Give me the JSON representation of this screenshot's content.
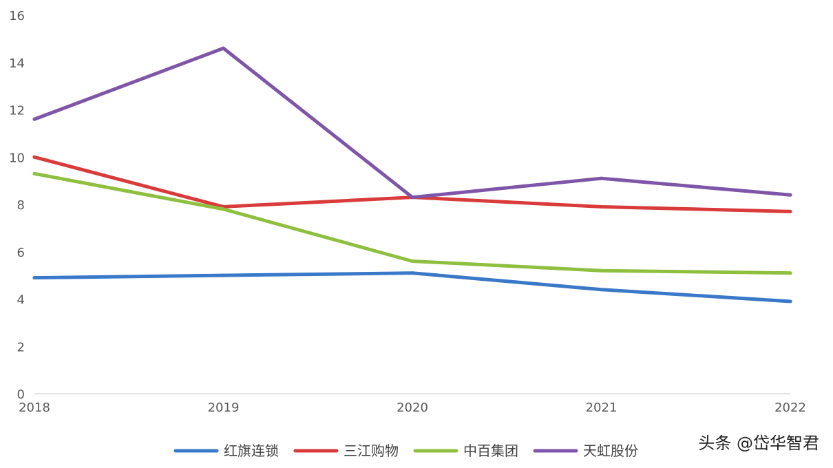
{
  "chart_data": {
    "type": "line",
    "title": "",
    "xlabel": "",
    "ylabel": "",
    "x": [
      "2018",
      "2019",
      "2020",
      "2021",
      "2022"
    ],
    "ylim": [
      0,
      16
    ],
    "yticks": [
      "0",
      "2",
      "4",
      "6",
      "8",
      "10",
      "12",
      "14",
      "16"
    ],
    "grid": false,
    "legend_position": "bottom",
    "series": [
      {
        "name": "红旗连锁",
        "color": "#3a78c9",
        "values": [
          4.9,
          5.0,
          5.1,
          4.4,
          3.9
        ]
      },
      {
        "name": "三江购物",
        "color": "#d93a3a",
        "values": [
          10.0,
          7.9,
          8.3,
          7.9,
          7.7
        ]
      },
      {
        "name": "中百集团",
        "color": "#8fbf3f",
        "values": [
          9.3,
          7.8,
          5.6,
          5.2,
          5.1
        ]
      },
      {
        "name": "天虹股份",
        "color": "#7e55a8",
        "values": [
          11.6,
          14.6,
          8.3,
          9.1,
          8.4
        ]
      }
    ]
  },
  "watermark": {
    "text": "头条 @岱华智君"
  }
}
